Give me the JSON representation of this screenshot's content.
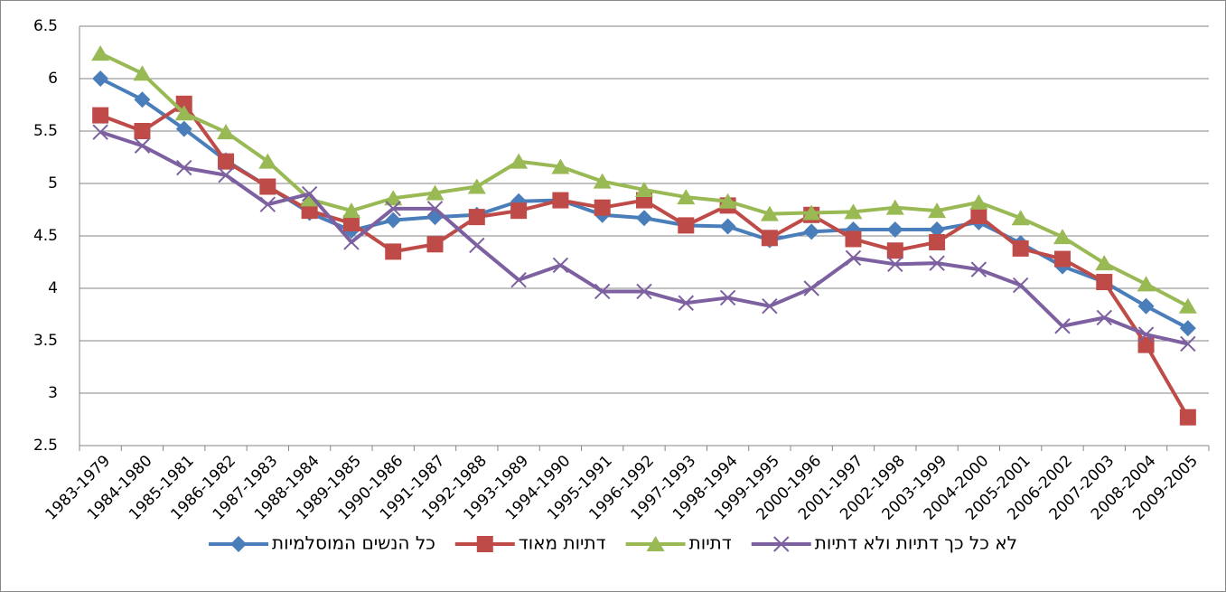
{
  "chart_data": {
    "type": "line",
    "categories": [
      "1983-1979",
      "1984-1980",
      "1985-1981",
      "1986-1982",
      "1987-1983",
      "1988-1984",
      "1989-1985",
      "1990-1986",
      "1991-1987",
      "1992-1988",
      "1993-1989",
      "1994-1990",
      "1995-1991",
      "1996-1992",
      "1997-1993",
      "1998-1994",
      "1999-1995",
      "2000-1996",
      "2001-1997",
      "2002-1998",
      "2003-1999",
      "2004-2000",
      "2005-2001",
      "2006-2002",
      "2007-2003",
      "2008-2004",
      "2009-2005"
    ],
    "series": [
      {
        "name": "כל הנשים המוסלמיות",
        "color": "#4a7ebb",
        "marker": "diamond",
        "values": [
          6.0,
          5.8,
          5.52,
          5.22,
          4.97,
          4.72,
          4.55,
          4.65,
          4.68,
          4.7,
          4.83,
          4.84,
          4.7,
          4.67,
          4.6,
          4.59,
          4.46,
          4.54,
          4.56,
          4.56,
          4.56,
          4.63,
          4.43,
          4.21,
          4.06,
          3.83,
          3.62
        ]
      },
      {
        "name": "דתיות מאוד",
        "color": "#be4b48",
        "marker": "square",
        "values": [
          5.65,
          5.5,
          5.76,
          5.21,
          4.97,
          4.74,
          4.62,
          4.35,
          4.42,
          4.68,
          4.74,
          4.84,
          4.77,
          4.84,
          4.6,
          4.79,
          4.48,
          4.7,
          4.47,
          4.36,
          4.44,
          4.69,
          4.38,
          4.28,
          4.06,
          3.46,
          2.77
        ]
      },
      {
        "name": "דתיות",
        "color": "#98b954",
        "marker": "triangle",
        "values": [
          6.24,
          6.05,
          5.67,
          5.49,
          5.21,
          4.85,
          4.74,
          4.86,
          4.91,
          4.97,
          5.21,
          5.16,
          5.02,
          4.94,
          4.87,
          4.83,
          4.71,
          4.72,
          4.73,
          4.77,
          4.74,
          4.82,
          4.67,
          4.49,
          4.24,
          4.04,
          3.83
        ]
      },
      {
        "name": "לא כל כך דתיות ולא דתיות",
        "color": "#7d60a0",
        "marker": "x",
        "values": [
          5.49,
          5.36,
          5.15,
          5.08,
          4.8,
          4.9,
          4.44,
          4.76,
          4.76,
          4.41,
          4.08,
          4.22,
          3.97,
          3.97,
          3.86,
          3.91,
          3.83,
          4.0,
          4.29,
          4.23,
          4.24,
          4.18,
          4.03,
          3.64,
          3.72,
          3.56,
          3.47
        ]
      }
    ],
    "ylim": [
      2.5,
      6.5
    ],
    "yticks": [
      2.5,
      3,
      3.5,
      4,
      4.5,
      5,
      5.5,
      6,
      6.5
    ],
    "grid": true,
    "legend": "bottom"
  }
}
